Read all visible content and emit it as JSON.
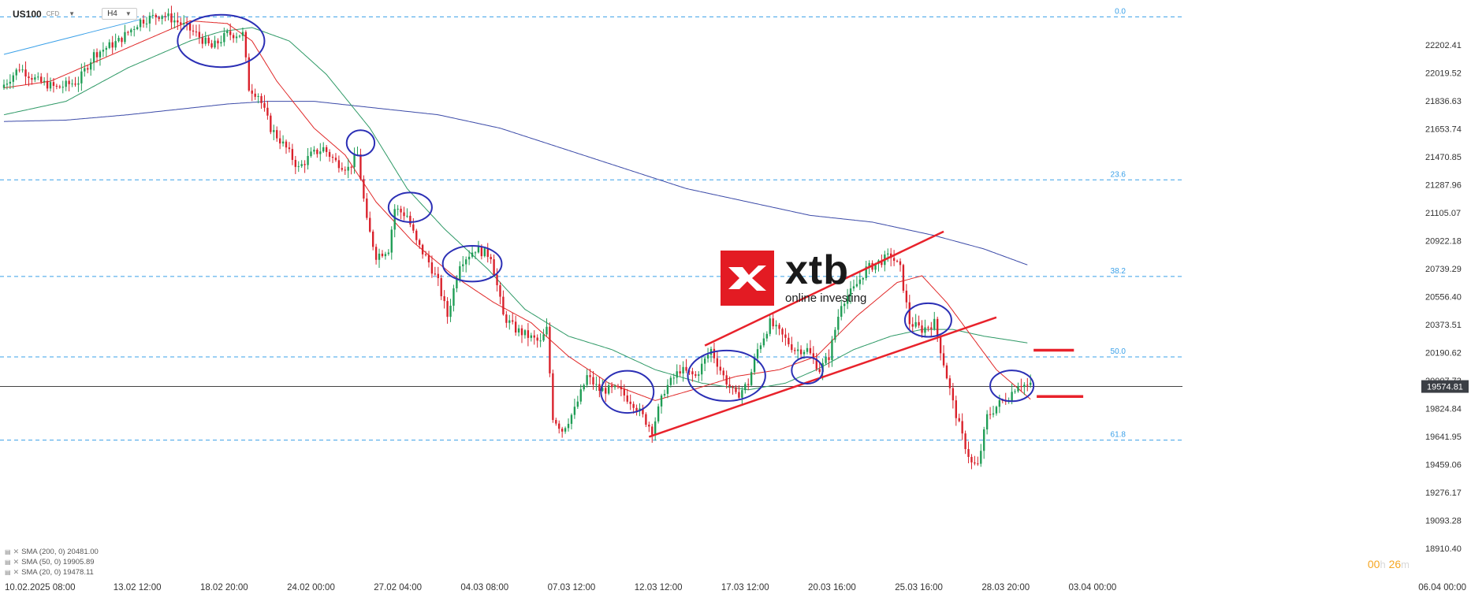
{
  "header": {
    "symbol": "US100",
    "instrument_type": "CFD",
    "timeframe": "H4"
  },
  "logo": {
    "name": "xtb",
    "tagline": "online investing"
  },
  "legend": [
    {
      "label": "SMA (200, 0) 20481.00",
      "color": "#3b4aa8"
    },
    {
      "label": "SMA (50, 0) 19905.89",
      "color": "#2e9966"
    },
    {
      "label": "SMA (20, 0) 19478.11",
      "color": "#e02828"
    }
  ],
  "timer": {
    "hours": "00",
    "h_unit": "h",
    "minutes": "26",
    "m_unit": "m"
  },
  "chart_data": {
    "type": "candlestick",
    "ylim": [
      18850,
      22420
    ],
    "x_range": [
      0,
      380
    ],
    "price_ticks": [
      "22202.41",
      "22019.52",
      "21836.63",
      "21653.74",
      "21470.85",
      "21287.96",
      "21105.07",
      "20922.18",
      "20739.29",
      "20556.40",
      "20373.51",
      "20190.62",
      "20007.73",
      "19824.84",
      "19641.95",
      "19459.06",
      "19276.17",
      "19093.28",
      "18910.40"
    ],
    "time_labels": [
      {
        "x": 15,
        "label": "10.02.2025 08:00"
      },
      {
        "x": 43,
        "label": "13.02 12:00"
      },
      {
        "x": 71,
        "label": "18.02 20:00"
      },
      {
        "x": 99,
        "label": "24.02 00:00"
      },
      {
        "x": 127,
        "label": "27.02 04:00"
      },
      {
        "x": 155,
        "label": "04.03 08:00"
      },
      {
        "x": 183,
        "label": "07.03 12:00"
      },
      {
        "x": 211,
        "label": "12.03 12:00"
      },
      {
        "x": 239,
        "label": "17.03 12:00"
      },
      {
        "x": 267,
        "label": "20.03 16:00"
      },
      {
        "x": 295,
        "label": "25.03 16:00"
      },
      {
        "x": 323,
        "label": "28.03 20:00"
      },
      {
        "x": 351,
        "label": "03.04 00:00"
      },
      {
        "x": 379,
        "label": "06.04 00:00"
      }
    ],
    "current_price": "19574.81",
    "current_price_value": 19574.81,
    "fibonacci": [
      {
        "level": "0.0",
        "price": 22330
      },
      {
        "level": "23.6",
        "price": 21115
      },
      {
        "level": "38.2",
        "price": 20395
      },
      {
        "level": "50.0",
        "price": 19795
      },
      {
        "level": "61.8",
        "price": 19175
      }
    ],
    "keypoints": [
      [
        0,
        21800
      ],
      [
        6,
        21950
      ],
      [
        12,
        21850
      ],
      [
        18,
        21800
      ],
      [
        25,
        21850
      ],
      [
        30,
        22050
      ],
      [
        38,
        22150
      ],
      [
        45,
        22300
      ],
      [
        52,
        22350
      ],
      [
        58,
        22280
      ],
      [
        63,
        22200
      ],
      [
        68,
        22100
      ],
      [
        73,
        22200
      ],
      [
        78,
        22200
      ],
      [
        80,
        21800
      ],
      [
        83,
        21750
      ],
      [
        87,
        21500
      ],
      [
        92,
        21350
      ],
      [
        96,
        21200
      ],
      [
        100,
        21300
      ],
      [
        104,
        21350
      ],
      [
        108,
        21250
      ],
      [
        112,
        21200
      ],
      [
        115,
        21300
      ],
      [
        118,
        20800
      ],
      [
        121,
        20550
      ],
      [
        125,
        20600
      ],
      [
        127,
        20900
      ],
      [
        131,
        20850
      ],
      [
        134,
        20650
      ],
      [
        138,
        20500
      ],
      [
        141,
        20350
      ],
      [
        144,
        20100
      ],
      [
        148,
        20500
      ],
      [
        153,
        20600
      ],
      [
        158,
        20550
      ],
      [
        162,
        20100
      ],
      [
        166,
        20000
      ],
      [
        170,
        19950
      ],
      [
        174,
        19900
      ],
      [
        176,
        20000
      ],
      [
        178,
        19350
      ],
      [
        181,
        19250
      ],
      [
        185,
        19400
      ],
      [
        189,
        19650
      ],
      [
        193,
        19550
      ],
      [
        199,
        19550
      ],
      [
        204,
        19450
      ],
      [
        207,
        19350
      ],
      [
        210,
        19250
      ],
      [
        214,
        19550
      ],
      [
        219,
        19700
      ],
      [
        224,
        19650
      ],
      [
        229,
        19850
      ],
      [
        233,
        19650
      ],
      [
        237,
        19500
      ],
      [
        241,
        19600
      ],
      [
        244,
        19850
      ],
      [
        248,
        20050
      ],
      [
        252,
        19950
      ],
      [
        256,
        19850
      ],
      [
        260,
        19850
      ],
      [
        264,
        19700
      ],
      [
        267,
        19800
      ],
      [
        271,
        20200
      ],
      [
        275,
        20300
      ],
      [
        279,
        20450
      ],
      [
        283,
        20500
      ],
      [
        287,
        20550
      ],
      [
        290,
        20450
      ],
      [
        293,
        20050
      ],
      [
        297,
        20000
      ],
      [
        301,
        20050
      ],
      [
        304,
        19750
      ],
      [
        307,
        19450
      ],
      [
        310,
        19200
      ],
      [
        313,
        19000
      ],
      [
        315,
        18980
      ],
      [
        318,
        19350
      ],
      [
        322,
        19450
      ],
      [
        325,
        19500
      ],
      [
        328,
        19600
      ],
      [
        331,
        19580
      ]
    ],
    "sma20": [
      [
        0,
        21800
      ],
      [
        15,
        21850
      ],
      [
        35,
        22050
      ],
      [
        50,
        22200
      ],
      [
        60,
        22300
      ],
      [
        72,
        22280
      ],
      [
        80,
        22150
      ],
      [
        88,
        21850
      ],
      [
        100,
        21500
      ],
      [
        110,
        21300
      ],
      [
        120,
        20950
      ],
      [
        132,
        20650
      ],
      [
        145,
        20400
      ],
      [
        158,
        20200
      ],
      [
        170,
        20050
      ],
      [
        182,
        19800
      ],
      [
        195,
        19600
      ],
      [
        210,
        19470
      ],
      [
        222,
        19550
      ],
      [
        236,
        19650
      ],
      [
        250,
        19700
      ],
      [
        262,
        19800
      ],
      [
        275,
        20100
      ],
      [
        288,
        20350
      ],
      [
        296,
        20400
      ],
      [
        304,
        20200
      ],
      [
        312,
        19950
      ],
      [
        320,
        19700
      ],
      [
        331,
        19480
      ]
    ],
    "sma50": [
      [
        0,
        21600
      ],
      [
        20,
        21700
      ],
      [
        40,
        21950
      ],
      [
        60,
        22150
      ],
      [
        70,
        22220
      ],
      [
        80,
        22250
      ],
      [
        92,
        22150
      ],
      [
        104,
        21900
      ],
      [
        118,
        21500
      ],
      [
        130,
        21050
      ],
      [
        142,
        20750
      ],
      [
        156,
        20450
      ],
      [
        168,
        20150
      ],
      [
        182,
        19950
      ],
      [
        196,
        19850
      ],
      [
        210,
        19700
      ],
      [
        225,
        19600
      ],
      [
        240,
        19550
      ],
      [
        252,
        19600
      ],
      [
        262,
        19700
      ],
      [
        274,
        19850
      ],
      [
        286,
        19950
      ],
      [
        296,
        20000
      ],
      [
        306,
        20000
      ],
      [
        316,
        19950
      ],
      [
        330,
        19900
      ]
    ],
    "sma200": [
      [
        0,
        21550
      ],
      [
        20,
        21560
      ],
      [
        40,
        21600
      ],
      [
        60,
        21650
      ],
      [
        72,
        21680
      ],
      [
        85,
        21700
      ],
      [
        100,
        21700
      ],
      [
        120,
        21650
      ],
      [
        140,
        21600
      ],
      [
        160,
        21500
      ],
      [
        180,
        21350
      ],
      [
        200,
        21200
      ],
      [
        220,
        21050
      ],
      [
        240,
        20950
      ],
      [
        260,
        20850
      ],
      [
        280,
        20800
      ],
      [
        300,
        20700
      ],
      [
        316,
        20600
      ],
      [
        330,
        20481
      ]
    ],
    "extra_line": [
      [
        0,
        22050
      ],
      [
        44,
        22310
      ]
    ],
    "channel_lines": [
      {
        "from": [
          226,
          19880
        ],
        "to": [
          303,
          20730
        ]
      },
      {
        "from": [
          208,
          19200
        ],
        "to": [
          320,
          20090
        ]
      }
    ],
    "target_lines": [
      {
        "from": [
          332,
          19845
        ],
        "to": [
          345,
          19845
        ]
      },
      {
        "from": [
          333,
          19500
        ],
        "to": [
          348,
          19500
        ]
      }
    ],
    "ellipses": [
      {
        "x": 70,
        "y": 22150,
        "rx": 14,
        "ry": 195
      },
      {
        "x": 115,
        "y": 21390,
        "rx": 4.5,
        "ry": 95
      },
      {
        "x": 131,
        "y": 20910,
        "rx": 7,
        "ry": 110
      },
      {
        "x": 151,
        "y": 20490,
        "rx": 9.5,
        "ry": 133
      },
      {
        "x": 201,
        "y": 19535,
        "rx": 8.5,
        "ry": 157
      },
      {
        "x": 233,
        "y": 19655,
        "rx": 12.5,
        "ry": 188
      },
      {
        "x": 259,
        "y": 19695,
        "rx": 5,
        "ry": 99
      },
      {
        "x": 298,
        "y": 20070,
        "rx": 7.5,
        "ry": 125
      },
      {
        "x": 325,
        "y": 19580,
        "rx": 7,
        "ry": 115
      }
    ]
  }
}
